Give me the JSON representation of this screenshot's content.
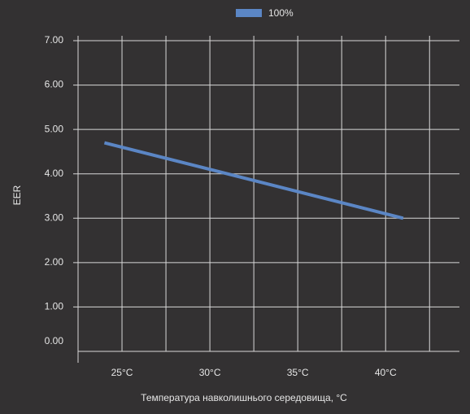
{
  "chart_data": {
    "type": "line",
    "legend_position": "top",
    "x_label": "Температура навколишнього середовища, °C",
    "y_label": "EER",
    "x": [
      24,
      41
    ],
    "series": [
      {
        "name": "100%",
        "color": "#5b86c5",
        "values": [
          4.7,
          3.0
        ]
      }
    ],
    "xlim": [
      22.5,
      44.2
    ],
    "xticks": [
      {
        "value": 25,
        "label": "25°C"
      },
      {
        "value": 30,
        "label": "30°C"
      },
      {
        "value": 35,
        "label": "35°C"
      },
      {
        "value": 40,
        "label": "40°C"
      }
    ],
    "x_minor_grid": [
      27.5,
      32.5,
      37.5,
      42.5
    ],
    "ylim": [
      0,
      7
    ],
    "yticks": [
      {
        "value": 0,
        "label": "0.00"
      },
      {
        "value": 1,
        "label": "1.00"
      },
      {
        "value": 2,
        "label": "2.00"
      },
      {
        "value": 3,
        "label": "3.00"
      },
      {
        "value": 4,
        "label": "4.00"
      },
      {
        "value": 5,
        "label": "5.00"
      },
      {
        "value": 6,
        "label": "6.00"
      },
      {
        "value": 7,
        "label": "7.00"
      }
    ],
    "grid": true
  }
}
